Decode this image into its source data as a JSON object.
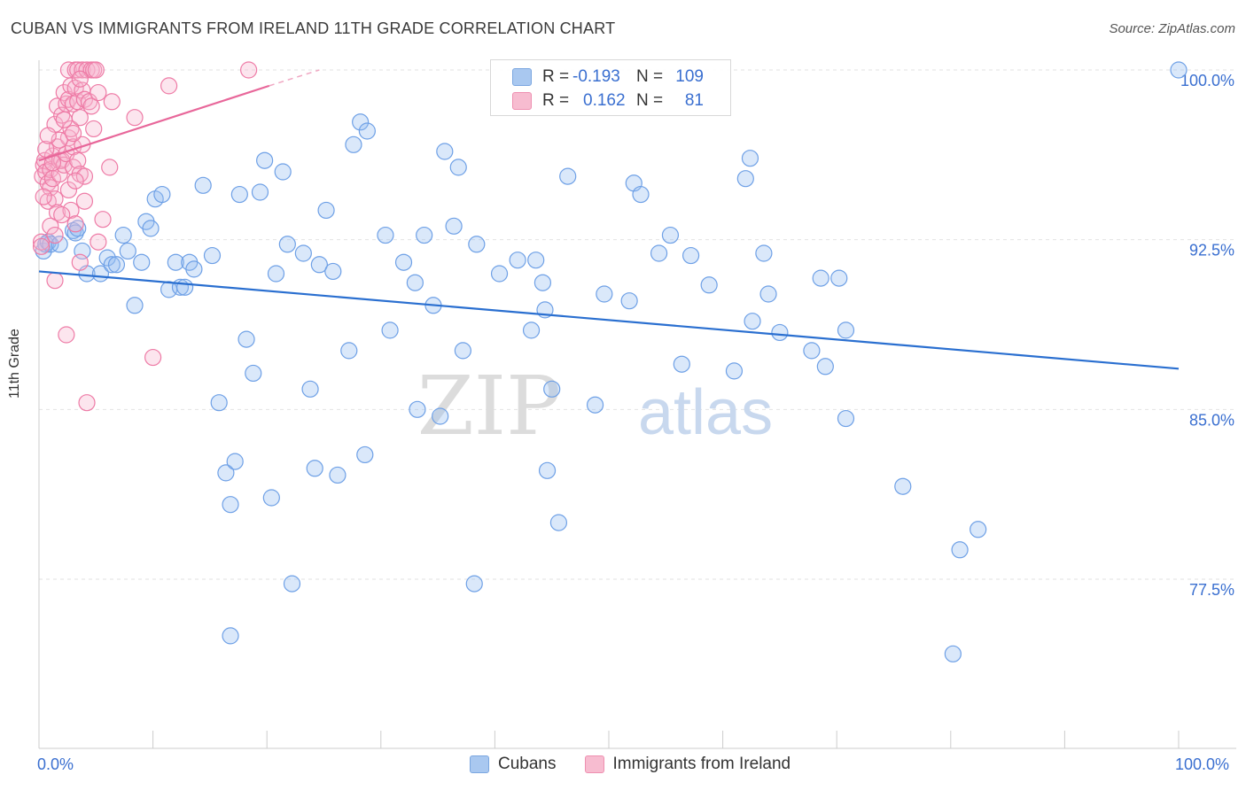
{
  "title": "CUBAN VS IMMIGRANTS FROM IRELAND 11TH GRADE CORRELATION CHART",
  "source": "Source: ZipAtlas.com",
  "watermark": {
    "left": "ZIP",
    "right": "atlas"
  },
  "legend": {
    "rows": [
      {
        "r_key": "R =",
        "r_val": "-0.193",
        "n_key": "N =",
        "n_val": "109",
        "color": "#a9c8f0",
        "border": "#7aa6e0"
      },
      {
        "r_key": "R =",
        "r_val": "0.162",
        "n_key": "N =",
        "n_val": "81",
        "color": "#f7bcd0",
        "border": "#ee8fb0"
      }
    ]
  },
  "bottom_legend": [
    {
      "label": "Cubans",
      "color": "#a9c8f0",
      "border": "#7aa6e0"
    },
    {
      "label": "Immigrants from Ireland",
      "color": "#f7bcd0",
      "border": "#ee8fb0"
    }
  ],
  "chart_data": {
    "type": "scatter",
    "ylabel": "11th Grade",
    "xlim": [
      0,
      100
    ],
    "ylim": [
      71.5,
      100.8
    ],
    "x_tick_labels": [
      "0.0%",
      "100.0%"
    ],
    "y_ticks": [
      77.5,
      85.0,
      92.5,
      100.0
    ],
    "y_tick_labels": [
      "77.5%",
      "85.0%",
      "92.5%",
      "100.0%"
    ],
    "grid": true,
    "series": [
      {
        "name": "Cubans",
        "color": "#6ea0e6",
        "fill": "rgba(150,190,240,0.35)",
        "trend": {
          "x": [
            0,
            100
          ],
          "y": [
            91.1,
            86.8
          ]
        },
        "points": [
          [
            0.4,
            92.0
          ],
          [
            0.6,
            92.3
          ],
          [
            0.8,
            92.4
          ],
          [
            1.0,
            92.3
          ],
          [
            1.8,
            92.3
          ],
          [
            3.0,
            92.9
          ],
          [
            3.2,
            92.8
          ],
          [
            3.4,
            93.0
          ],
          [
            3.8,
            92.0
          ],
          [
            4.2,
            91.0
          ],
          [
            5.4,
            91.0
          ],
          [
            6.0,
            91.7
          ],
          [
            6.4,
            91.4
          ],
          [
            6.8,
            91.4
          ],
          [
            7.4,
            92.7
          ],
          [
            7.8,
            92.0
          ],
          [
            8.4,
            89.6
          ],
          [
            9.0,
            91.5
          ],
          [
            9.4,
            93.3
          ],
          [
            9.8,
            93.0
          ],
          [
            10.2,
            94.3
          ],
          [
            10.8,
            94.5
          ],
          [
            11.4,
            90.3
          ],
          [
            12.0,
            91.5
          ],
          [
            12.4,
            90.4
          ],
          [
            12.8,
            90.4
          ],
          [
            13.2,
            91.5
          ],
          [
            13.6,
            91.2
          ],
          [
            14.4,
            94.9
          ],
          [
            15.2,
            91.8
          ],
          [
            15.8,
            85.3
          ],
          [
            16.4,
            82.2
          ],
          [
            16.8,
            80.8
          ],
          [
            16.8,
            75.0
          ],
          [
            17.2,
            82.7
          ],
          [
            17.6,
            94.5
          ],
          [
            18.2,
            88.1
          ],
          [
            18.8,
            86.6
          ],
          [
            19.4,
            94.6
          ],
          [
            19.8,
            96.0
          ],
          [
            20.4,
            81.1
          ],
          [
            20.8,
            91.0
          ],
          [
            21.4,
            95.5
          ],
          [
            21.8,
            92.3
          ],
          [
            22.2,
            77.3
          ],
          [
            23.2,
            91.9
          ],
          [
            23.8,
            85.9
          ],
          [
            24.2,
            82.4
          ],
          [
            24.6,
            91.4
          ],
          [
            25.2,
            93.8
          ],
          [
            25.8,
            91.1
          ],
          [
            26.2,
            82.1
          ],
          [
            27.2,
            87.6
          ],
          [
            27.6,
            96.7
          ],
          [
            28.2,
            97.7
          ],
          [
            28.6,
            83.0
          ],
          [
            28.8,
            97.3
          ],
          [
            30.4,
            92.7
          ],
          [
            30.8,
            88.5
          ],
          [
            32.0,
            91.5
          ],
          [
            33.2,
            85.0
          ],
          [
            33.0,
            90.6
          ],
          [
            33.8,
            92.7
          ],
          [
            34.6,
            89.6
          ],
          [
            35.2,
            84.7
          ],
          [
            35.6,
            96.4
          ],
          [
            36.4,
            93.1
          ],
          [
            36.8,
            95.7
          ],
          [
            37.2,
            87.6
          ],
          [
            38.2,
            77.3
          ],
          [
            38.4,
            92.3
          ],
          [
            40.4,
            91.0
          ],
          [
            42.0,
            91.6
          ],
          [
            43.2,
            88.5
          ],
          [
            43.6,
            91.6
          ],
          [
            44.2,
            90.6
          ],
          [
            44.4,
            89.4
          ],
          [
            44.6,
            82.3
          ],
          [
            45.0,
            85.9
          ],
          [
            45.6,
            80.0
          ],
          [
            46.4,
            95.3
          ],
          [
            48.8,
            85.2
          ],
          [
            49.6,
            90.1
          ],
          [
            51.8,
            89.8
          ],
          [
            52.2,
            95.0
          ],
          [
            52.8,
            94.5
          ],
          [
            54.4,
            91.9
          ],
          [
            55.4,
            92.7
          ],
          [
            56.4,
            87.0
          ],
          [
            57.2,
            91.8
          ],
          [
            58.8,
            90.5
          ],
          [
            61.0,
            86.7
          ],
          [
            62.0,
            95.2
          ],
          [
            62.4,
            96.1
          ],
          [
            62.6,
            88.9
          ],
          [
            63.6,
            91.9
          ],
          [
            64.0,
            90.1
          ],
          [
            65.0,
            88.4
          ],
          [
            67.8,
            87.6
          ],
          [
            68.6,
            90.8
          ],
          [
            69.0,
            86.9
          ],
          [
            70.2,
            90.8
          ],
          [
            70.8,
            88.5
          ],
          [
            70.8,
            84.6
          ],
          [
            75.8,
            81.6
          ],
          [
            80.2,
            74.2
          ],
          [
            80.8,
            78.8
          ],
          [
            82.4,
            79.7
          ],
          [
            100,
            100.0
          ]
        ]
      },
      {
        "name": "Immigrants from Ireland",
        "color": "#ee7ba6",
        "fill": "rgba(247,180,205,0.35)",
        "trend": {
          "x": [
            0,
            20.2
          ],
          "y": [
            96.0,
            99.3
          ]
        },
        "trend_dashed": {
          "x": [
            20.2,
            24.6
          ],
          "y": [
            99.3,
            100.0
          ]
        },
        "points": [
          [
            0.2,
            92.4
          ],
          [
            0.2,
            92.2
          ],
          [
            0.3,
            95.3
          ],
          [
            0.4,
            95.8
          ],
          [
            0.5,
            96.0
          ],
          [
            0.6,
            95.5
          ],
          [
            0.8,
            94.2
          ],
          [
            0.8,
            95.0
          ],
          [
            1.0,
            95.6
          ],
          [
            1.0,
            94.8
          ],
          [
            1.2,
            96.2
          ],
          [
            1.2,
            95.2
          ],
          [
            1.4,
            97.6
          ],
          [
            1.4,
            94.3
          ],
          [
            1.4,
            90.7
          ],
          [
            1.6,
            98.4
          ],
          [
            1.6,
            93.7
          ],
          [
            1.6,
            96.6
          ],
          [
            1.8,
            96.0
          ],
          [
            1.8,
            95.4
          ],
          [
            2.0,
            98.0
          ],
          [
            2.0,
            96.0
          ],
          [
            2.2,
            99.0
          ],
          [
            2.2,
            95.8
          ],
          [
            2.4,
            98.5
          ],
          [
            2.4,
            96.3
          ],
          [
            2.4,
            88.3
          ],
          [
            2.6,
            97.0
          ],
          [
            2.6,
            98.7
          ],
          [
            2.6,
            100.0
          ],
          [
            2.8,
            99.3
          ],
          [
            2.8,
            97.4
          ],
          [
            2.8,
            93.8
          ],
          [
            3.0,
            98.5
          ],
          [
            3.0,
            96.6
          ],
          [
            3.0,
            95.7
          ],
          [
            3.2,
            99.2
          ],
          [
            3.2,
            100.0
          ],
          [
            3.2,
            93.2
          ],
          [
            3.4,
            98.6
          ],
          [
            3.4,
            96.0
          ],
          [
            3.4,
            100.0
          ],
          [
            3.6,
            97.9
          ],
          [
            3.6,
            95.4
          ],
          [
            3.6,
            91.5
          ],
          [
            3.8,
            99.1
          ],
          [
            3.8,
            96.7
          ],
          [
            3.8,
            100.0
          ],
          [
            4.0,
            98.7
          ],
          [
            4.0,
            95.3
          ],
          [
            4.2,
            100.0
          ],
          [
            4.2,
            85.3
          ],
          [
            4.4,
            98.6
          ],
          [
            4.6,
            100.0
          ],
          [
            4.6,
            98.4
          ],
          [
            4.8,
            97.4
          ],
          [
            4.8,
            100.0
          ],
          [
            5.0,
            100.0
          ],
          [
            5.2,
            92.4
          ],
          [
            5.2,
            99.0
          ],
          [
            5.6,
            93.4
          ],
          [
            6.2,
            95.7
          ],
          [
            6.4,
            98.6
          ],
          [
            8.4,
            97.9
          ],
          [
            10.0,
            87.3
          ],
          [
            11.4,
            99.3
          ],
          [
            18.4,
            100.0
          ],
          [
            0.4,
            94.4
          ],
          [
            0.6,
            96.5
          ],
          [
            1.0,
            93.1
          ],
          [
            1.2,
            95.9
          ],
          [
            1.8,
            96.9
          ],
          [
            2.2,
            97.8
          ],
          [
            2.6,
            94.7
          ],
          [
            3.0,
            97.2
          ],
          [
            3.2,
            95.1
          ],
          [
            3.6,
            99.6
          ],
          [
            4.0,
            94.2
          ],
          [
            0.8,
            97.1
          ],
          [
            1.4,
            92.7
          ],
          [
            2.0,
            93.6
          ]
        ]
      }
    ]
  }
}
